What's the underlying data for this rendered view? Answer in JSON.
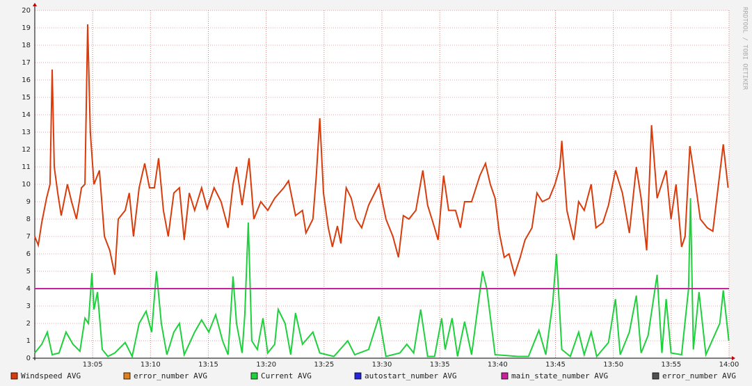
{
  "chart_data": {
    "type": "line",
    "watermark": "RRDTOOL / TOBI OETIKER",
    "xlim": [
      "13:00",
      "14:00"
    ],
    "xticks": [
      "13:05",
      "13:10",
      "13:15",
      "13:20",
      "13:25",
      "13:30",
      "13:35",
      "13:40",
      "13:45",
      "13:50",
      "13:55",
      "14:00"
    ],
    "ylim": [
      0,
      20
    ],
    "yticks": [
      0,
      1,
      2,
      3,
      4,
      5,
      6,
      7,
      8,
      9,
      10,
      11,
      12,
      13,
      14,
      15,
      16,
      17,
      18,
      19,
      20
    ],
    "grid": true,
    "series": [
      {
        "name": "Windspeed AVG",
        "color": "#d83c0c",
        "x": [
          "13:00:00",
          "13:00:18",
          "13:00:36",
          "13:01:01",
          "13:01:19",
          "13:01:30",
          "13:01:41",
          "13:01:59",
          "13:02:17",
          "13:02:49",
          "13:03:11",
          "13:03:36",
          "13:04:02",
          "13:04:20",
          "13:04:34",
          "13:04:48",
          "13:05:07",
          "13:05:35",
          "13:06:01",
          "13:06:29",
          "13:06:55",
          "13:07:13",
          "13:07:49",
          "13:08:10",
          "13:08:32",
          "13:09:01",
          "13:09:30",
          "13:09:55",
          "13:10:20",
          "13:10:42",
          "13:11:07",
          "13:11:32",
          "13:12:01",
          "13:12:30",
          "13:12:55",
          "13:13:21",
          "13:13:49",
          "13:14:25",
          "13:14:54",
          "13:15:30",
          "13:16:06",
          "13:16:42",
          "13:17:08",
          "13:17:26",
          "13:17:55",
          "13:18:31",
          "13:18:56",
          "13:19:32",
          "13:20:08",
          "13:20:44",
          "13:21:31",
          "13:21:56",
          "13:22:32",
          "13:23:08",
          "13:23:26",
          "13:24:02",
          "13:24:20",
          "13:24:38",
          "13:24:57",
          "13:25:22",
          "13:25:43",
          "13:26:09",
          "13:26:27",
          "13:26:55",
          "13:27:21",
          "13:27:46",
          "13:28:15",
          "13:28:51",
          "13:29:45",
          "13:30:21",
          "13:30:57",
          "13:31:26",
          "13:31:51",
          "13:32:20",
          "13:32:56",
          "13:33:32",
          "13:33:57",
          "13:34:33",
          "13:34:51",
          "13:35:20",
          "13:35:46",
          "13:36:22",
          "13:36:47",
          "13:37:09",
          "13:37:45",
          "13:38:28",
          "13:38:57",
          "13:39:22",
          "13:39:47",
          "13:40:09",
          "13:40:34",
          "13:40:59",
          "13:41:28",
          "13:41:57",
          "13:42:22",
          "13:42:58",
          "13:43:24",
          "13:43:52",
          "13:44:28",
          "13:44:57",
          "13:45:23",
          "13:45:33",
          "13:45:59",
          "13:46:35",
          "13:47:00",
          "13:47:29",
          "13:48:05",
          "13:48:30",
          "13:49:06",
          "13:49:35",
          "13:50:11",
          "13:50:47",
          "13:51:23",
          "13:51:59",
          "13:52:24",
          "13:52:53",
          "13:53:18",
          "13:53:47",
          "13:54:34",
          "13:54:59",
          "13:55:25",
          "13:55:54",
          "13:56:12",
          "13:56:37",
          "13:57:06",
          "13:57:31",
          "13:58:07",
          "13:58:36",
          "13:59:05",
          "13:59:30",
          "13:59:55"
        ],
        "values": [
          7.0,
          6.5,
          7.8,
          9.2,
          10,
          16.6,
          11,
          9.5,
          8.2,
          10,
          9,
          8,
          9.8,
          10,
          19.2,
          13,
          10,
          10.8,
          7,
          6.2,
          4.8,
          8,
          8.5,
          9.5,
          7,
          9.8,
          11.2,
          9.8,
          9.8,
          11.5,
          8.5,
          7,
          9.5,
          9.8,
          6.8,
          9.5,
          8.5,
          9.8,
          8.6,
          9.8,
          9,
          7.5,
          10,
          11,
          8.8,
          11.5,
          8,
          9,
          8.5,
          9.2,
          9.8,
          10.2,
          8.2,
          8.5,
          7.2,
          8,
          10.5,
          13.8,
          9.5,
          7.5,
          6.4,
          7.6,
          6.6,
          9.8,
          9.2,
          8,
          7.5,
          8.8,
          10,
          8,
          7,
          5.8,
          8.2,
          8,
          8.5,
          10.8,
          8.8,
          7.5,
          6.8,
          10.5,
          8.5,
          8.5,
          7.5,
          9,
          9,
          10.5,
          11.2,
          10,
          9.2,
          7.2,
          5.8,
          6,
          4.8,
          5.8,
          6.8,
          7.5,
          9.5,
          9,
          9.2,
          10,
          11,
          12.5,
          8.5,
          6.8,
          9,
          8.5,
          10,
          7.5,
          7.8,
          8.8,
          10.8,
          9.5,
          7.2,
          11,
          9.2,
          6.2,
          13.4,
          9.2,
          10.8,
          8,
          10,
          6.4,
          7,
          12.2,
          10,
          8,
          7.5,
          7.3,
          10,
          12.3,
          9.8
        ]
      },
      {
        "name": "error_number AVG",
        "color": "#e0801c"
      },
      {
        "name": "Current AVG",
        "color": "#1ed03c",
        "x": [
          "13:00:00",
          "13:00:36",
          "13:01:05",
          "13:01:30",
          "13:02:06",
          "13:02:42",
          "13:03:18",
          "13:03:54",
          "13:04:20",
          "13:04:38",
          "13:04:56",
          "13:05:07",
          "13:05:25",
          "13:05:50",
          "13:06:19",
          "13:06:55",
          "13:07:49",
          "13:08:25",
          "13:09:01",
          "13:09:37",
          "13:10:06",
          "13:10:31",
          "13:10:56",
          "13:11:25",
          "13:12:01",
          "13:12:30",
          "13:12:55",
          "13:13:49",
          "13:14:25",
          "13:15:02",
          "13:15:38",
          "13:16:14",
          "13:16:42",
          "13:17:08",
          "13:17:26",
          "13:17:55",
          "13:18:09",
          "13:18:27",
          "13:18:45",
          "13:19:14",
          "13:19:43",
          "13:20:08",
          "13:20:44",
          "13:21:02",
          "13:21:38",
          "13:22:07",
          "13:22:32",
          "13:23:08",
          "13:24:02",
          "13:24:38",
          "13:25:51",
          "13:27:03",
          "13:27:39",
          "13:28:51",
          "13:29:45",
          "13:30:21",
          "13:31:33",
          "13:32:09",
          "13:32:45",
          "13:33:21",
          "13:33:57",
          "13:34:33",
          "13:35:10",
          "13:35:28",
          "13:36:04",
          "13:36:32",
          "13:37:09",
          "13:37:45",
          "13:38:42",
          "13:39:04",
          "13:39:47",
          "13:41:46",
          "13:42:40",
          "13:43:34",
          "13:44:10",
          "13:44:46",
          "13:45:05",
          "13:45:33",
          "13:46:17",
          "13:47:00",
          "13:47:29",
          "13:48:05",
          "13:48:34",
          "13:49:35",
          "13:50:11",
          "13:50:36",
          "13:51:23",
          "13:51:59",
          "13:52:24",
          "13:53:00",
          "13:53:47",
          "13:54:12",
          "13:54:34",
          "13:54:59",
          "13:55:54",
          "13:56:30",
          "13:56:40",
          "13:56:55",
          "13:57:24",
          "13:58:00",
          "13:59:12",
          "13:59:30",
          "13:59:59"
        ],
        "values": [
          0.3,
          0.8,
          1.5,
          0.2,
          0.3,
          1.5,
          0.8,
          0.4,
          2.3,
          2.0,
          4.9,
          2.8,
          3.8,
          0.5,
          0.1,
          0.3,
          0.9,
          0.1,
          2.0,
          2.7,
          1.5,
          5.0,
          2.0,
          0.2,
          1.5,
          2.0,
          0.2,
          1.5,
          2.2,
          1.5,
          2.5,
          1.0,
          0.2,
          4.7,
          2.0,
          0.3,
          2.5,
          7.8,
          1.0,
          0.5,
          2.3,
          0.3,
          0.8,
          2.8,
          2.0,
          0.2,
          2.6,
          0.8,
          1.5,
          0.3,
          0.1,
          1.0,
          0.2,
          0.5,
          2.4,
          0.1,
          0.3,
          0.8,
          0.3,
          2.8,
          0.1,
          0.1,
          2.3,
          0.5,
          2.3,
          0.1,
          2.1,
          0.2,
          5.0,
          4.0,
          0.2,
          0.1,
          0.1,
          1.6,
          0.2,
          3.2,
          6.0,
          0.5,
          0.1,
          1.5,
          0.2,
          1.5,
          0.1,
          0.9,
          3.4,
          0.2,
          1.5,
          3.6,
          0.3,
          1.3,
          4.8,
          0.3,
          3.4,
          0.3,
          0.2,
          4.0,
          9.2,
          0.5,
          3.8,
          0.2,
          2.0,
          3.9,
          1.0
        ]
      },
      {
        "name": "autostart_number AVG",
        "color": "#2424d8"
      },
      {
        "name": "main_state_number AVG",
        "color": "#c8209c",
        "x": [
          "13:00:00",
          "14:00:00"
        ],
        "values": [
          4,
          4
        ]
      },
      {
        "name": "error_number AVG",
        "color": "#505050"
      }
    ]
  }
}
